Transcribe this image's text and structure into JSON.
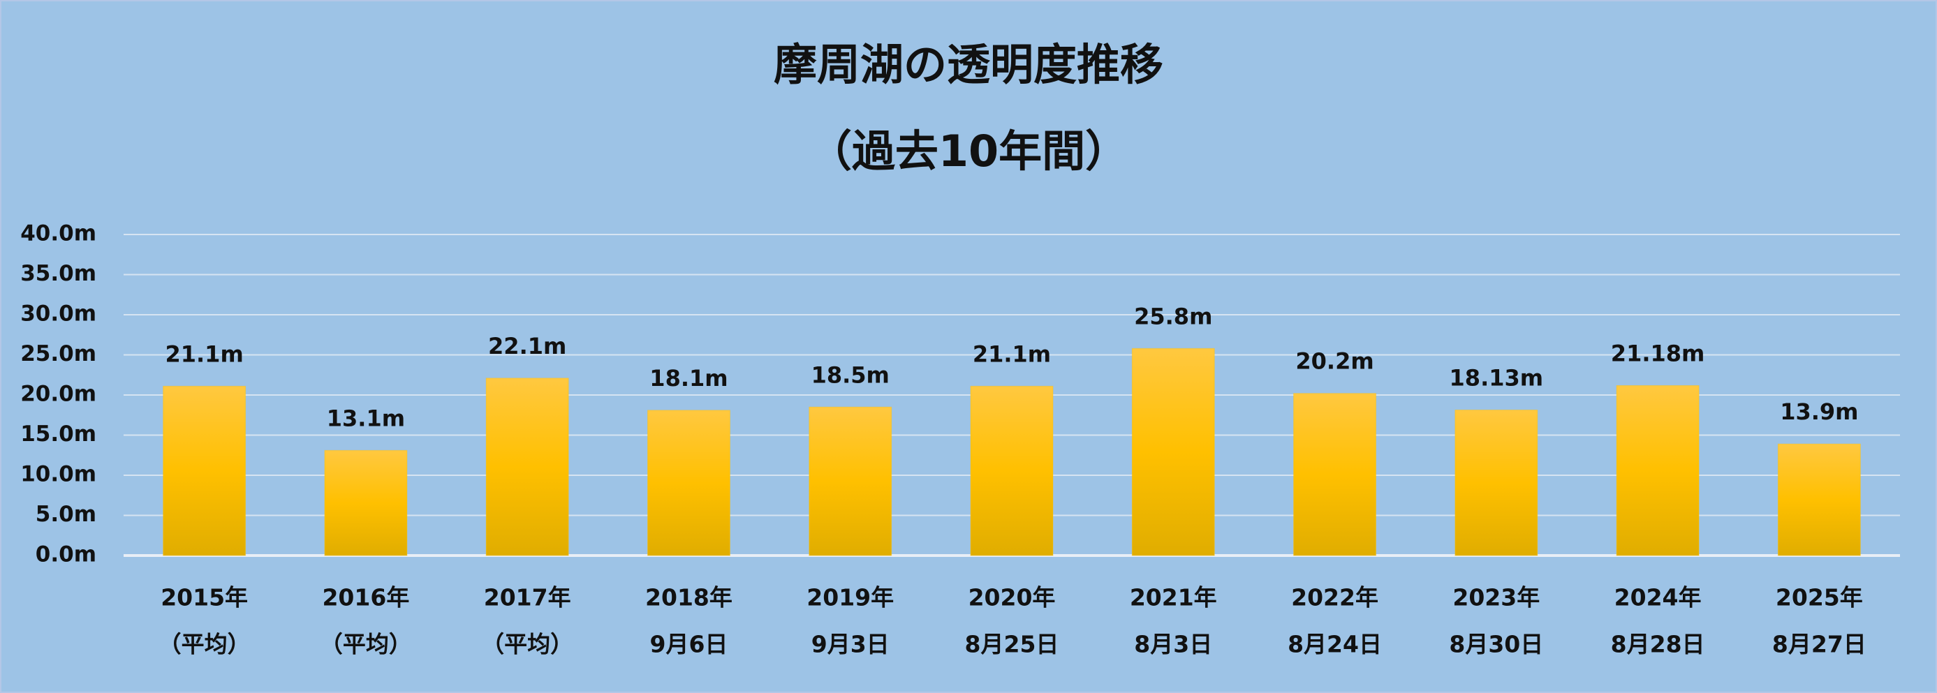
{
  "chart_data": {
    "type": "bar",
    "title": [
      "摩周湖の透明度推移",
      "（過去10年間）"
    ],
    "categories": [
      [
        "2015年",
        "（平均）"
      ],
      [
        "2016年",
        "（平均）"
      ],
      [
        "2017年",
        "（平均）"
      ],
      [
        "2018年",
        "9月6日"
      ],
      [
        "2019年",
        "9月3日"
      ],
      [
        "2020年",
        "8月25日"
      ],
      [
        "2021年",
        "8月3日"
      ],
      [
        "2022年",
        "8月24日"
      ],
      [
        "2023年",
        "8月30日"
      ],
      [
        "2024年",
        "8月28日"
      ],
      [
        "2025年",
        "8月27日"
      ]
    ],
    "values": [
      21.1,
      13.1,
      22.1,
      18.1,
      18.5,
      21.1,
      25.8,
      20.2,
      18.13,
      21.18,
      13.9
    ],
    "value_labels": [
      "21.1m",
      "13.1m",
      "22.1m",
      "18.1m",
      "18.5m",
      "21.1m",
      "25.8m",
      "20.2m",
      "18.13m",
      "21.18m",
      "13.9m"
    ],
    "color": "#ffc000",
    "ylim": [
      0,
      40
    ],
    "yticks": [
      {
        "value": 0,
        "label": "0.0m"
      },
      {
        "value": 5,
        "label": "5.0m"
      },
      {
        "value": 10,
        "label": "10.0m"
      },
      {
        "value": 15,
        "label": "15.0m"
      },
      {
        "value": 20,
        "label": "20.0m"
      },
      {
        "value": 25,
        "label": "25.0m"
      },
      {
        "value": 30,
        "label": "30.0m"
      },
      {
        "value": 35,
        "label": "35.0m"
      },
      {
        "value": 40,
        "label": "40.0m"
      }
    ],
    "grid": true
  }
}
